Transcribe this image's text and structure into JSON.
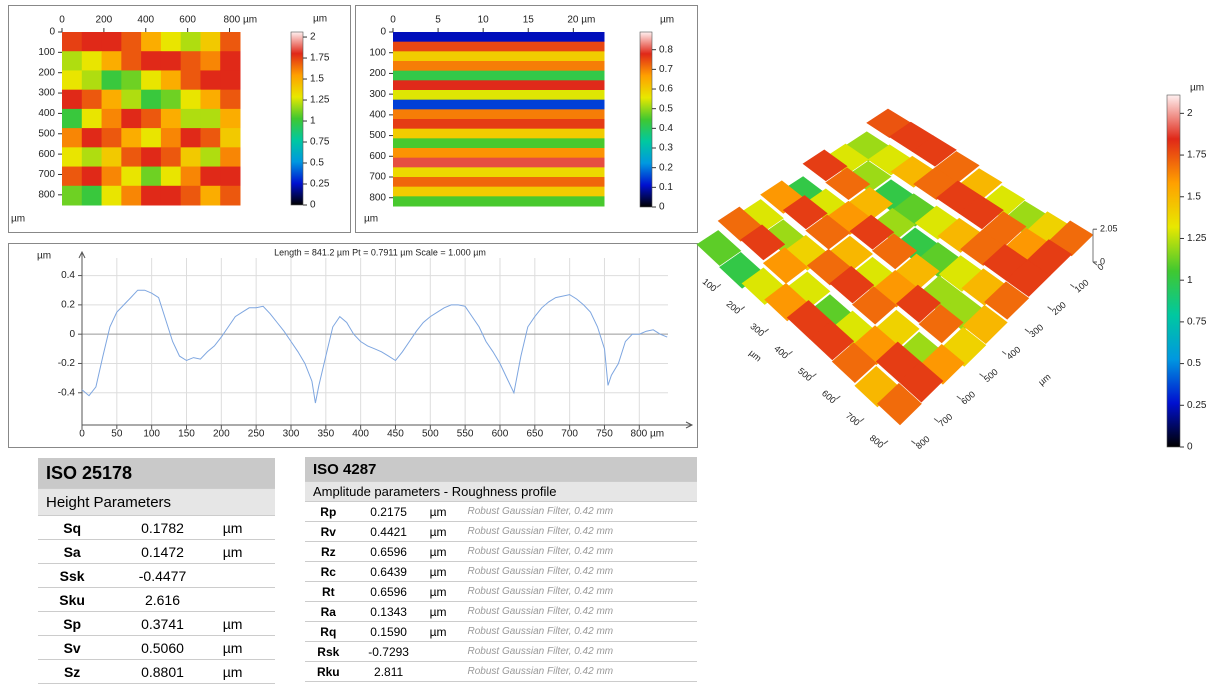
{
  "chart_data": [
    {
      "type": "heatmap",
      "y_label": "µm",
      "colorbar_label": "µm",
      "xlim": [
        0,
        850
      ],
      "ylim": [
        0,
        850
      ],
      "xticks": [
        0,
        200,
        400,
        600,
        {
          "value": 800,
          "label": "800 µm"
        }
      ],
      "yticks": [
        0,
        100,
        200,
        300,
        400,
        500,
        600,
        700,
        800
      ],
      "clim": [
        0,
        2.06
      ],
      "cticks": [
        0,
        0.25,
        0.5,
        0.75,
        1,
        1.25,
        1.5,
        1.75,
        2
      ],
      "colorscale": [
        "#000000",
        "#0010d0",
        "#0098e0",
        "#00c8a0",
        "#40c830",
        "#e8e800",
        "#ffa000",
        "#e02818",
        "#fff0f0"
      ],
      "z": [
        [
          1.75,
          1.8,
          1.8,
          1.7,
          1.5,
          1.3,
          1.2,
          1.4,
          1.7
        ],
        [
          1.2,
          1.3,
          1.5,
          1.7,
          1.8,
          1.8,
          1.7,
          1.6,
          1.8
        ],
        [
          1.3,
          1.2,
          1.0,
          1.1,
          1.3,
          1.5,
          1.7,
          1.8,
          1.8
        ],
        [
          1.8,
          1.7,
          1.5,
          1.2,
          1.0,
          1.1,
          1.3,
          1.5,
          1.7
        ],
        [
          1.0,
          1.3,
          1.6,
          1.8,
          1.7,
          1.5,
          1.2,
          1.2,
          1.5
        ],
        [
          1.6,
          1.8,
          1.7,
          1.5,
          1.3,
          1.6,
          1.8,
          1.7,
          1.4
        ],
        [
          1.3,
          1.2,
          1.4,
          1.7,
          1.8,
          1.7,
          1.4,
          1.2,
          1.6
        ],
        [
          1.7,
          1.8,
          1.6,
          1.3,
          1.1,
          1.3,
          1.6,
          1.8,
          1.8
        ],
        [
          1.1,
          1.0,
          1.3,
          1.6,
          1.8,
          1.8,
          1.7,
          1.5,
          1.7
        ]
      ]
    },
    {
      "type": "heatmap",
      "y_label": "µm",
      "colorbar_label": "µm",
      "xlim": [
        0,
        23.4
      ],
      "ylim": [
        0,
        840
      ],
      "xticks": [
        0,
        5,
        10,
        15,
        {
          "value": 20,
          "label": "20 µm"
        }
      ],
      "yticks": [
        0,
        100,
        200,
        300,
        400,
        500,
        600,
        700,
        800
      ],
      "clim": [
        0,
        0.89
      ],
      "cticks": [
        0,
        0.1,
        0.2,
        0.3,
        0.4,
        0.5,
        0.6,
        0.7,
        0.8
      ],
      "colorscale": [
        "#000000",
        "#0010d0",
        "#0098e0",
        "#00c8a0",
        "#40c830",
        "#e8e800",
        "#ffa000",
        "#e02818",
        "#fff0f0"
      ],
      "z": [
        [
          0.1
        ],
        [
          0.75
        ],
        [
          0.6
        ],
        [
          0.7
        ],
        [
          0.42
        ],
        [
          0.78
        ],
        [
          0.55
        ],
        [
          0.15
        ],
        [
          0.7
        ],
        [
          0.76
        ],
        [
          0.6
        ],
        [
          0.45
        ],
        [
          0.68
        ],
        [
          0.8
        ],
        [
          0.58
        ],
        [
          0.72
        ],
        [
          0.6
        ],
        [
          0.45
        ]
      ]
    },
    {
      "type": "line",
      "title": "Length = 841.2 µm  Pt = 0.7911 µm  Scale = 1.000 µm",
      "y_label": "µm",
      "x": [
        0,
        10,
        20,
        30,
        40,
        50,
        60,
        70,
        80,
        90,
        100,
        110,
        120,
        130,
        140,
        150,
        160,
        170,
        180,
        190,
        200,
        210,
        220,
        230,
        240,
        250,
        260,
        270,
        280,
        290,
        300,
        310,
        320,
        330,
        335,
        340,
        350,
        360,
        370,
        380,
        390,
        400,
        410,
        420,
        430,
        440,
        450,
        460,
        470,
        480,
        490,
        500,
        510,
        520,
        530,
        540,
        550,
        560,
        570,
        580,
        590,
        600,
        610,
        620,
        630,
        640,
        650,
        660,
        670,
        680,
        690,
        700,
        710,
        720,
        730,
        740,
        750,
        755,
        760,
        770,
        780,
        790,
        800,
        810,
        820,
        830,
        840
      ],
      "series": [
        {
          "color": "#7ea6e0",
          "values": [
            -0.38,
            -0.42,
            -0.36,
            -0.15,
            0.05,
            0.15,
            0.2,
            0.25,
            0.3,
            0.3,
            0.28,
            0.25,
            0.1,
            -0.05,
            -0.15,
            -0.18,
            -0.16,
            -0.17,
            -0.12,
            -0.08,
            -0.02,
            0.05,
            0.12,
            0.15,
            0.18,
            0.18,
            0.19,
            0.14,
            0.08,
            0.02,
            -0.05,
            -0.12,
            -0.2,
            -0.32,
            -0.47,
            -0.35,
            -0.15,
            0.05,
            0.12,
            0.08,
            0.0,
            -0.05,
            -0.08,
            -0.1,
            -0.12,
            -0.15,
            -0.18,
            -0.12,
            -0.05,
            0.02,
            0.08,
            0.12,
            0.15,
            0.18,
            0.2,
            0.2,
            0.19,
            0.12,
            0.05,
            -0.05,
            -0.12,
            -0.2,
            -0.3,
            -0.4,
            -0.15,
            0.05,
            0.12,
            0.18,
            0.22,
            0.25,
            0.26,
            0.27,
            0.24,
            0.2,
            0.15,
            0.05,
            -0.1,
            -0.35,
            -0.28,
            -0.2,
            -0.05,
            0.0,
            0.0,
            0.02,
            0.03,
            0.0,
            -0.02
          ]
        }
      ],
      "xlim": [
        0,
        841.2
      ],
      "ylim": [
        -0.62,
        0.52
      ],
      "xticks": [
        0,
        50,
        100,
        150,
        200,
        250,
        300,
        350,
        400,
        450,
        500,
        550,
        600,
        650,
        700,
        750,
        {
          "value": 800,
          "label": "800 µm"
        }
      ],
      "yticks": [
        -0.4,
        -0.2,
        0,
        0.2,
        0.4
      ],
      "grid": true
    },
    {
      "type": "surface3d",
      "x_label": "µm",
      "y_label": "µm",
      "colorbar_label": "µm",
      "xlim": [
        0,
        850
      ],
      "ylim": [
        0,
        850
      ],
      "xticks": [
        100,
        200,
        300,
        400,
        500,
        600,
        700,
        800
      ],
      "yticks": [
        0,
        100,
        200,
        300,
        400,
        500,
        600,
        700,
        800
      ],
      "zlim": [
        0,
        2.05
      ],
      "zticks": [
        0,
        2.05
      ],
      "clim": [
        0,
        2.11
      ],
      "cticks": [
        0,
        0.25,
        0.5,
        0.75,
        1,
        1.25,
        1.5,
        1.75,
        2
      ],
      "colorscale": [
        "#000000",
        "#0010d0",
        "#0098e0",
        "#00c8a0",
        "#40c830",
        "#e8e800",
        "#ffa000",
        "#e02818",
        "#fff0f0"
      ],
      "z": [
        [
          1.75,
          1.8,
          1.8,
          1.7,
          1.5,
          1.3,
          1.2,
          1.4,
          1.7
        ],
        [
          1.2,
          1.3,
          1.5,
          1.7,
          1.8,
          1.8,
          1.7,
          1.6,
          1.8
        ],
        [
          1.3,
          1.2,
          1.0,
          1.1,
          1.3,
          1.5,
          1.7,
          1.8,
          1.8
        ],
        [
          1.8,
          1.7,
          1.5,
          1.2,
          1.0,
          1.1,
          1.3,
          1.5,
          1.7
        ],
        [
          1.0,
          1.3,
          1.6,
          1.8,
          1.7,
          1.5,
          1.2,
          1.2,
          1.5
        ],
        [
          1.6,
          1.8,
          1.7,
          1.5,
          1.3,
          1.6,
          1.8,
          1.7,
          1.4
        ],
        [
          1.3,
          1.2,
          1.4,
          1.7,
          1.8,
          1.7,
          1.4,
          1.2,
          1.6
        ],
        [
          1.7,
          1.8,
          1.6,
          1.3,
          1.1,
          1.3,
          1.6,
          1.8,
          1.8
        ],
        [
          1.1,
          1.0,
          1.3,
          1.6,
          1.8,
          1.8,
          1.7,
          1.5,
          1.7
        ]
      ]
    }
  ],
  "tables": [
    {
      "title": "ISO 25178",
      "subtitle": "Height Parameters",
      "rows": [
        [
          "Sq",
          "0.1782",
          "µm"
        ],
        [
          "Sa",
          "0.1472",
          "µm"
        ],
        [
          "Ssk",
          "-0.4477",
          null
        ],
        [
          "Sku",
          "2.616",
          null
        ],
        [
          "Sp",
          "0.3741",
          "µm"
        ],
        [
          "Sv",
          "0.5060",
          "µm"
        ],
        [
          "Sz",
          "0.8801",
          "µm"
        ]
      ]
    },
    {
      "title": "ISO 4287",
      "subtitle": "Amplitude parameters - Roughness profile",
      "rows": [
        [
          "Rp",
          "0.2175",
          "µm",
          "Robust Gaussian Filter, 0.42 mm"
        ],
        [
          "Rv",
          "0.4421",
          "µm",
          "Robust Gaussian Filter, 0.42 mm"
        ],
        [
          "Rz",
          "0.6596",
          "µm",
          "Robust Gaussian Filter, 0.42 mm"
        ],
        [
          "Rc",
          "0.6439",
          "µm",
          "Robust Gaussian Filter, 0.42 mm"
        ],
        [
          "Rt",
          "0.6596",
          "µm",
          "Robust Gaussian Filter, 0.42 mm"
        ],
        [
          "Ra",
          "0.1343",
          "µm",
          "Robust Gaussian Filter, 0.42 mm"
        ],
        [
          "Rq",
          "0.1590",
          "µm",
          "Robust Gaussian Filter, 0.42 mm"
        ],
        [
          "Rsk",
          "-0.7293",
          null,
          "Robust Gaussian Filter, 0.42 mm"
        ],
        [
          "Rku",
          "2.811",
          null,
          "Robust Gaussian Filter, 0.42 mm"
        ]
      ]
    }
  ]
}
